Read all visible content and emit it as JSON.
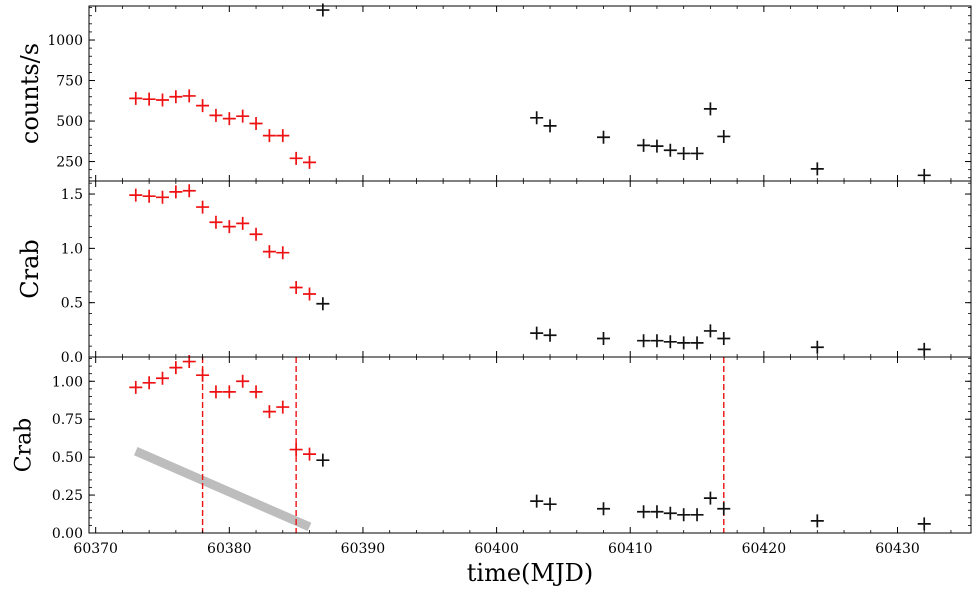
{
  "chart_data": {
    "type": "scatter",
    "xlabel": "time(MJD)",
    "xlim": [
      60369.5,
      60435.5
    ],
    "x_ticks": [
      "60370",
      "60380",
      "60390",
      "60400",
      "60410",
      "60420",
      "60430"
    ],
    "x_tick_values": [
      60370,
      60380,
      60390,
      60400,
      60410,
      60420,
      60430
    ],
    "colors": {
      "red": "#ee1111",
      "black": "#111111",
      "trend": "#bdbdbd",
      "vline": "#ee1111"
    },
    "panels": [
      {
        "name": "counts",
        "ylabel": "counts/s",
        "ylim": [
          130,
          1210
        ],
        "y_ticks": [
          "250",
          "500",
          "750",
          "1000"
        ],
        "y_tick_values": [
          250,
          500,
          750,
          1000
        ],
        "series": [
          {
            "name": "red",
            "x": [
              60373,
              60374,
              60375,
              60376,
              60377,
              60378,
              60379,
              60380,
              60381,
              60382,
              60383,
              60384,
              60385,
              60386
            ],
            "y": [
              640,
              635,
              630,
              650,
              655,
              595,
              535,
              515,
              530,
              485,
              410,
              410,
              270,
              245
            ]
          },
          {
            "name": "black",
            "x": [
              60387,
              60403,
              60404,
              60408,
              60411,
              60412,
              60413,
              60414,
              60415,
              60416,
              60417,
              60424,
              60432
            ],
            "y": [
              1185,
              520,
              470,
              400,
              350,
              345,
              320,
              300,
              300,
              575,
              405,
              205,
              165
            ]
          }
        ]
      },
      {
        "name": "crab1",
        "ylabel": "Crab",
        "ylim": [
          0.0,
          1.62
        ],
        "y_ticks": [
          "0.0",
          "0.5",
          "1.0",
          "1.5"
        ],
        "y_tick_values": [
          0.0,
          0.5,
          1.0,
          1.5
        ],
        "series": [
          {
            "name": "red",
            "x": [
              60373,
              60374,
              60375,
              60376,
              60377,
              60378,
              60379,
              60380,
              60381,
              60382,
              60383,
              60384,
              60385,
              60386
            ],
            "y": [
              1.49,
              1.48,
              1.47,
              1.52,
              1.53,
              1.38,
              1.24,
              1.2,
              1.23,
              1.13,
              0.97,
              0.96,
              0.64,
              0.58
            ]
          },
          {
            "name": "black",
            "x": [
              60387,
              60403,
              60404,
              60408,
              60411,
              60412,
              60413,
              60414,
              60415,
              60416,
              60417,
              60424,
              60432
            ],
            "y": [
              0.49,
              0.22,
              0.2,
              0.17,
              0.15,
              0.15,
              0.14,
              0.13,
              0.13,
              0.24,
              0.17,
              0.09,
              0.07
            ]
          }
        ]
      },
      {
        "name": "crab2",
        "ylabel": "Crab",
        "ylim": [
          0.0,
          1.16
        ],
        "y_ticks": [
          "0.00",
          "0.25",
          "0.50",
          "0.75",
          "1.00"
        ],
        "y_tick_values": [
          0.0,
          0.25,
          0.5,
          0.75,
          1.0
        ],
        "series": [
          {
            "name": "red",
            "x": [
              60373,
              60374,
              60375,
              60376,
              60377,
              60378,
              60379,
              60380,
              60381,
              60382,
              60383,
              60384,
              60385,
              60386
            ],
            "y": [
              0.96,
              0.99,
              1.02,
              1.09,
              1.13,
              1.04,
              0.93,
              0.93,
              1.0,
              0.93,
              0.8,
              0.83,
              0.55,
              0.52
            ]
          },
          {
            "name": "black",
            "x": [
              60387,
              60403,
              60404,
              60408,
              60411,
              60412,
              60413,
              60414,
              60415,
              60416,
              60417,
              60424,
              60432
            ],
            "y": [
              0.48,
              0.21,
              0.19,
              0.16,
              0.14,
              0.14,
              0.13,
              0.12,
              0.12,
              0.23,
              0.16,
              0.08,
              0.06
            ]
          }
        ],
        "vlines_x": [
          60378,
          60385,
          60417
        ],
        "trend_line": {
          "x": [
            60373,
            60386
          ],
          "y": [
            0.54,
            0.04
          ]
        }
      }
    ]
  }
}
